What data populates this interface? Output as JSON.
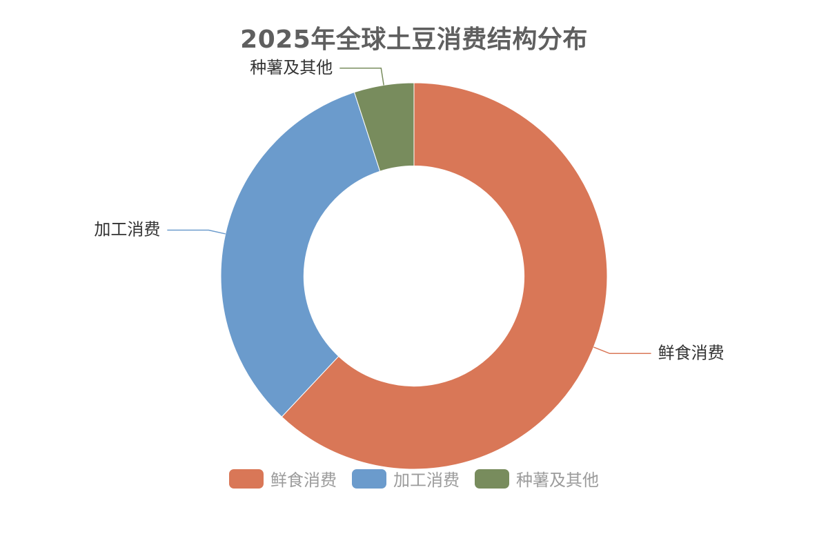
{
  "chart_data": {
    "type": "pie",
    "title": "2025年全球土豆消费结构分布",
    "inner_radius_ratio": 0.57,
    "categories": [
      "鲜食消费",
      "加工消费",
      "种薯及其他"
    ],
    "values": [
      62,
      33,
      5
    ],
    "unit": "%",
    "colors": [
      "#d97757",
      "#6b9bcc",
      "#788c5d"
    ],
    "legend_position": "bottom"
  }
}
